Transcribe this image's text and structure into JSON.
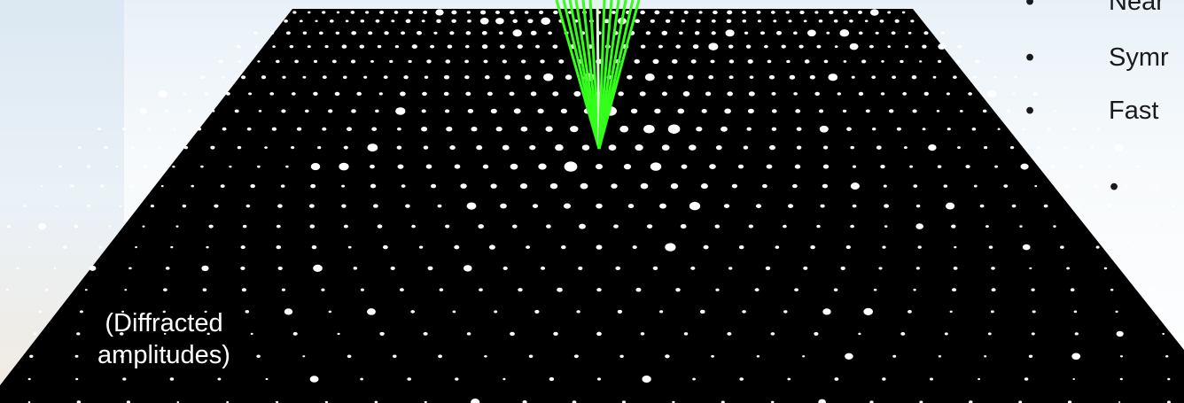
{
  "caption": {
    "line1": "(Diffracted",
    "line2": "amplitudes)"
  },
  "bullets": [
    {
      "marker": "•",
      "text": "Near"
    },
    {
      "marker": "•",
      "text": "Symr"
    },
    {
      "marker": "•",
      "text": "Fast"
    },
    {
      "marker": "•",
      "text": ""
    }
  ],
  "colors": {
    "pattern_background": "#000000",
    "spots": "#ffffff",
    "rays": "#33ff1a",
    "center_ray": "#d9ffd0",
    "caption_text": "#ffffff",
    "bullet_text": "#1a1a1a"
  }
}
